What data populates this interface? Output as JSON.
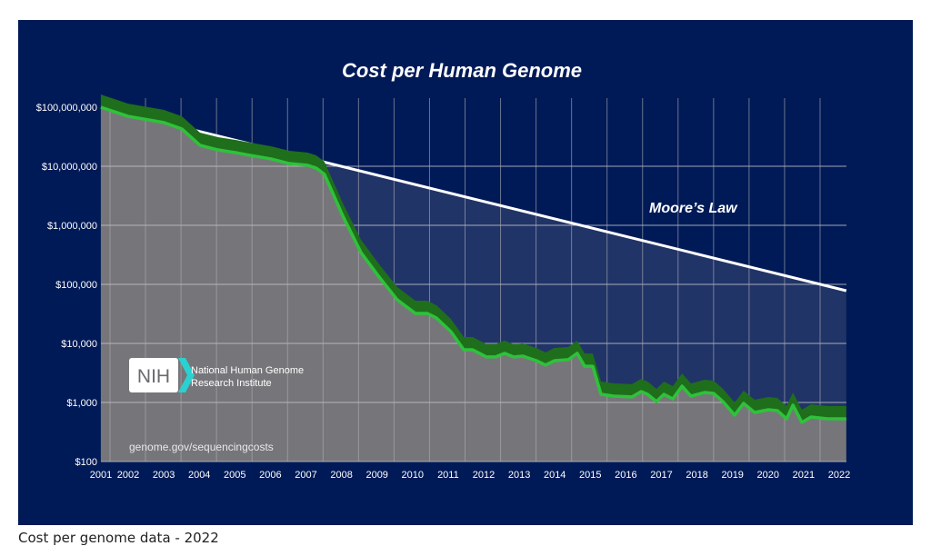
{
  "caption": "Cost per genome data - 2022",
  "chart_data": {
    "type": "area",
    "title": "Cost per Human Genome",
    "xlabel": "",
    "ylabel": "",
    "yscale": "log",
    "ylim": [
      100,
      100000000
    ],
    "y_ticks": [
      {
        "value": 100000000,
        "label": "$100,000,000"
      },
      {
        "value": 10000000,
        "label": "$10,000,000"
      },
      {
        "value": 1000000,
        "label": "$1,000,000"
      },
      {
        "value": 100000,
        "label": "$100,000"
      },
      {
        "value": 10000,
        "label": "$10,000"
      },
      {
        "value": 1000,
        "label": "$1,000"
      },
      {
        "value": 100,
        "label": "$100"
      }
    ],
    "x_ticks": [
      "2001",
      "2002",
      "2003",
      "2004",
      "2005",
      "2006",
      "2007",
      "2008",
      "2009",
      "2010",
      "2011",
      "2012",
      "2013",
      "2014",
      "2015",
      "2016",
      "2017",
      "2018",
      "2019",
      "2020",
      "2021",
      "2022"
    ],
    "grid": true,
    "series": [
      {
        "name": "Cost per Genome",
        "color": "#2ec23a",
        "band_color": "#1f6e1c",
        "x": [
          2001.23,
          2002.0,
          2003.0,
          2003.51,
          2004.02,
          2004.53,
          2005.02,
          2005.3,
          2006.02,
          2006.53,
          2007.04,
          2007.29,
          2007.52,
          2008.04,
          2008.55,
          2009.06,
          2009.57,
          2010.08,
          2010.41,
          2010.67,
          2011.08,
          2011.44,
          2011.69,
          2012.08,
          2012.33,
          2012.59,
          2012.84,
          2013.1,
          2013.48,
          2013.74,
          2013.99,
          2014.38,
          2014.63,
          2014.84,
          2015.07,
          2015.3,
          2015.66,
          2016.17,
          2016.43,
          2016.61,
          2016.86,
          2017.07,
          2017.32,
          2017.58,
          2017.83,
          2018.21,
          2018.47,
          2018.73,
          2019.06,
          2019.31,
          2019.62,
          2020.01,
          2020.26,
          2020.52,
          2020.7,
          2020.95,
          2021.21,
          2021.67,
          2022.2
        ],
        "values": [
          100000000,
          70000000,
          55000000,
          42800000,
          22600000,
          18900000,
          17000000,
          15800000,
          13300000,
          11100000,
          10400000,
          9300000,
          7300000,
          1430000,
          345000,
          133000,
          54700,
          32200,
          32200,
          27000,
          15800,
          7800,
          7800,
          5900,
          5900,
          6800,
          5900,
          6100,
          5100,
          4300,
          5100,
          5300,
          6800,
          4100,
          4100,
          1375,
          1280,
          1240,
          1530,
          1375,
          1035,
          1375,
          1150,
          1890,
          1280,
          1475,
          1425,
          1035,
          610,
          965,
          677,
          753,
          728,
          529,
          900,
          459,
          568,
          529,
          529
        ]
      },
      {
        "name": "Moore's Law",
        "color": "#ffffff",
        "x": [
          2003.84,
          2022.2
        ],
        "values": [
          41200000,
          78000
        ]
      }
    ],
    "annotations": [
      "Moore’s Law",
      "genome.gov/sequencingcosts"
    ],
    "logo": {
      "mark": "NIH",
      "text_line1": "National Human Genome",
      "text_line2": "Research Institute",
      "accent": "#2ad1d1"
    }
  }
}
